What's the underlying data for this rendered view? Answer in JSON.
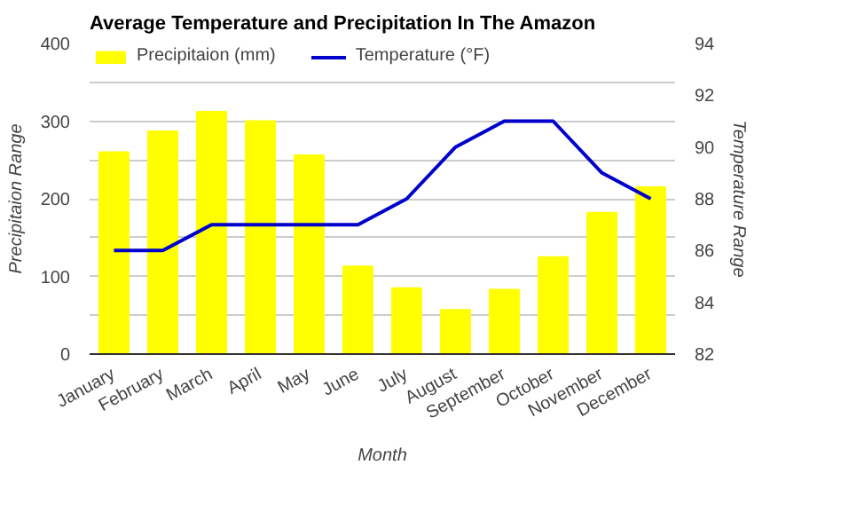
{
  "chart_data": {
    "type": "bar",
    "title": "Average Temperature and Precipitation In The Amazon",
    "xlabel": "Month",
    "ylabel": "Precipitaion Range",
    "y2label": "Temperature Range",
    "categories": [
      "January",
      "February",
      "March",
      "April",
      "May",
      "June",
      "July",
      "August",
      "September",
      "October",
      "November",
      "December"
    ],
    "series": [
      {
        "name": "Precipitaion (mm)",
        "color": "#ffff00",
        "values": [
          260,
          287,
          312,
          300,
          256,
          113,
          85,
          57,
          83,
          125,
          182,
          215
        ]
      },
      {
        "name": "Temperature (°F)",
        "color": "#0000cc",
        "type": "line",
        "axis": "y2",
        "values": [
          86,
          86,
          87,
          87,
          87,
          87,
          88,
          90,
          91,
          91,
          89,
          88
        ]
      }
    ],
    "ylim": [
      0,
      400
    ],
    "yticks": [
      0,
      {
        "value": 50,
        "label": null
      },
      100,
      {
        "value": 150,
        "label": null
      },
      200,
      {
        "value": 250,
        "label": null
      },
      300,
      {
        "value": 350,
        "label": null
      },
      400
    ],
    "y2lim": [
      82,
      94
    ],
    "y2ticks": [
      82,
      84,
      86,
      88,
      90,
      92,
      94
    ],
    "grid": "y",
    "legend": "top left"
  }
}
